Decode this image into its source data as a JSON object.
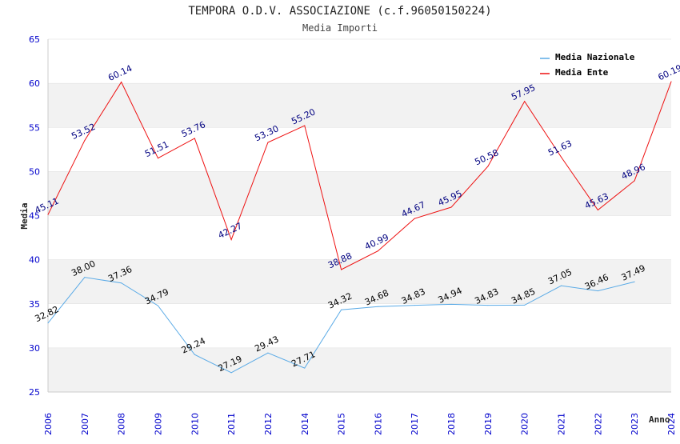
{
  "chart_data": {
    "type": "line",
    "title": "TEMPORA O.D.V. ASSOCIAZIONE (c.f.96050150224)",
    "subtitle": "Media Importi",
    "xlabel": "Anno",
    "ylabel": "Media",
    "ylim": [
      25,
      65
    ],
    "yticks": [
      "25",
      "30",
      "35",
      "40",
      "45",
      "50",
      "55",
      "60",
      "65"
    ],
    "grid": "alternating horizontal bands",
    "legend_position": "top-right",
    "categories": [
      "2006",
      "2007",
      "2008",
      "2009",
      "2010",
      "2011",
      "2012",
      "2014",
      "2015",
      "2016",
      "2017",
      "2018",
      "2019",
      "2020",
      "2021",
      "2022",
      "2023",
      "2024"
    ],
    "series": [
      {
        "name": "Media Nazionale",
        "color": "#5aaae6",
        "label_color": "#000000",
        "values": [
          32.82,
          38.0,
          37.36,
          34.79,
          29.24,
          27.19,
          29.43,
          27.71,
          34.32,
          34.68,
          34.83,
          34.94,
          34.83,
          34.85,
          37.05,
          36.46,
          37.49,
          null
        ],
        "labels": [
          "32.82",
          "38.00",
          "37.36",
          "34.79",
          "29.24",
          "27.19",
          "29.43",
          "27.71",
          "34.32",
          "34.68",
          "34.83",
          "34.94",
          "34.83",
          "34.85",
          "37.05",
          "36.46",
          "37.49",
          null
        ]
      },
      {
        "name": "Media Ente",
        "color": "#ee1111",
        "label_color": "#000080",
        "values": [
          45.11,
          53.52,
          60.14,
          51.51,
          53.76,
          42.27,
          53.3,
          55.2,
          38.88,
          40.99,
          44.67,
          45.95,
          50.58,
          57.95,
          51.63,
          45.63,
          48.96,
          60.19
        ],
        "labels": [
          "45.11",
          "53.52",
          "60.14",
          "51.51",
          "53.76",
          "42.27",
          "53.30",
          "55.20",
          "38.88",
          "40.99",
          "44.67",
          "45.95",
          "50.58",
          "57.95",
          "51.63",
          "45.63",
          "48.96",
          "60.19"
        ]
      }
    ],
    "colors": {
      "band": "#f2f2f2",
      "grid_line": "#dddddd",
      "axis": "#cccccc",
      "tick_text": "#0000cc"
    }
  }
}
